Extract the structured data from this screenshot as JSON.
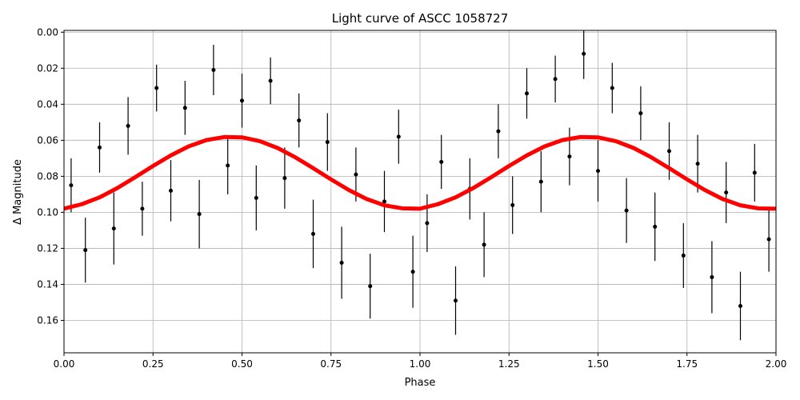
{
  "chart_data": {
    "type": "scatter",
    "title": "Light curve of ASCC 1058727",
    "xlabel": "Phase",
    "ylabel": "Δ Magnitude",
    "xlim": [
      0,
      2
    ],
    "ylim": [
      -0.001,
      0.178
    ],
    "y_inverted": true,
    "grid": true,
    "xticks": [
      {
        "value": 0,
        "label": "0.00"
      },
      {
        "value": 0.25,
        "label": "0.25"
      },
      {
        "value": 0.5,
        "label": "0.50"
      },
      {
        "value": 0.75,
        "label": "0.75"
      },
      {
        "value": 1,
        "label": "1.00"
      },
      {
        "value": 1.25,
        "label": "1.25"
      },
      {
        "value": 1.5,
        "label": "1.50"
      },
      {
        "value": 1.75,
        "label": "1.75"
      },
      {
        "value": 2,
        "label": "2.00"
      }
    ],
    "yticks": [
      {
        "value": 0,
        "label": "0.00"
      },
      {
        "value": 0.02,
        "label": "0.02"
      },
      {
        "value": 0.04,
        "label": "0.04"
      },
      {
        "value": 0.06,
        "label": "0.06"
      },
      {
        "value": 0.08,
        "label": "0.08"
      },
      {
        "value": 0.1,
        "label": "0.10"
      },
      {
        "value": 0.12,
        "label": "0.12"
      },
      {
        "value": 0.14,
        "label": "0.14"
      },
      {
        "value": 0.16,
        "label": "0.16"
      }
    ],
    "series": [
      {
        "type": "errorbar",
        "color": "#000000",
        "x": [
          0.02,
          0.06,
          0.1,
          0.14,
          0.18,
          0.22,
          0.26,
          0.3,
          0.34,
          0.38,
          0.42,
          0.46,
          0.5,
          0.54,
          0.58,
          0.62,
          0.66,
          0.7,
          0.74,
          0.78,
          0.82,
          0.86,
          0.9,
          0.94,
          0.98,
          1.02,
          1.06,
          1.1,
          1.14,
          1.18,
          1.22,
          1.26,
          1.3,
          1.34,
          1.38,
          1.42,
          1.46,
          1.5,
          1.54,
          1.58,
          1.62,
          1.66,
          1.7,
          1.74,
          1.78,
          1.82,
          1.86,
          1.9,
          1.94,
          1.98
        ],
        "values": [
          0.085,
          0.121,
          0.064,
          0.109,
          0.052,
          0.098,
          0.031,
          0.088,
          0.042,
          0.101,
          0.021,
          0.074,
          0.038,
          0.092,
          0.027,
          0.081,
          0.049,
          0.112,
          0.061,
          0.128,
          0.079,
          0.141,
          0.094,
          0.058,
          0.133,
          0.106,
          0.072,
          0.149,
          0.087,
          0.118,
          0.055,
          0.096,
          0.034,
          0.083,
          0.026,
          0.069,
          0.012,
          0.077,
          0.031,
          0.099,
          0.045,
          0.108,
          0.066,
          0.124,
          0.073,
          0.136,
          0.089,
          0.152,
          0.078,
          0.115
        ],
        "errors": [
          0.015,
          0.018,
          0.014,
          0.02,
          0.016,
          0.015,
          0.013,
          0.017,
          0.015,
          0.019,
          0.014,
          0.016,
          0.015,
          0.018,
          0.013,
          0.017,
          0.015,
          0.019,
          0.016,
          0.02,
          0.015,
          0.018,
          0.017,
          0.015,
          0.02,
          0.016,
          0.015,
          0.019,
          0.017,
          0.018,
          0.015,
          0.016,
          0.014,
          0.017,
          0.013,
          0.016,
          0.014,
          0.017,
          0.014,
          0.018,
          0.015,
          0.019,
          0.016,
          0.018,
          0.016,
          0.02,
          0.017,
          0.019,
          0.016,
          0.018
        ]
      },
      {
        "type": "line",
        "color": "#ff0000",
        "x": [
          0,
          0.05,
          0.1,
          0.15,
          0.2,
          0.25,
          0.3,
          0.35,
          0.4,
          0.45,
          0.5,
          0.55,
          0.6,
          0.65,
          0.7,
          0.75,
          0.8,
          0.85,
          0.9,
          0.95,
          1,
          1.05,
          1.1,
          1.15,
          1.2,
          1.25,
          1.3,
          1.35,
          1.4,
          1.45,
          1.5,
          1.55,
          1.6,
          1.65,
          1.7,
          1.75,
          1.8,
          1.85,
          1.9,
          1.95,
          2
        ],
        "values": [
          0.098,
          0.0955,
          0.0917,
          0.0865,
          0.0805,
          0.0743,
          0.0684,
          0.0634,
          0.0599,
          0.0582,
          0.0584,
          0.0605,
          0.0643,
          0.0695,
          0.0755,
          0.0817,
          0.0876,
          0.0926,
          0.0961,
          0.0978,
          0.098,
          0.0955,
          0.0917,
          0.0865,
          0.0805,
          0.0743,
          0.0684,
          0.0634,
          0.0599,
          0.0582,
          0.0584,
          0.0605,
          0.0643,
          0.0695,
          0.0755,
          0.0817,
          0.0876,
          0.0926,
          0.0961,
          0.0978,
          0.098
        ]
      }
    ]
  }
}
